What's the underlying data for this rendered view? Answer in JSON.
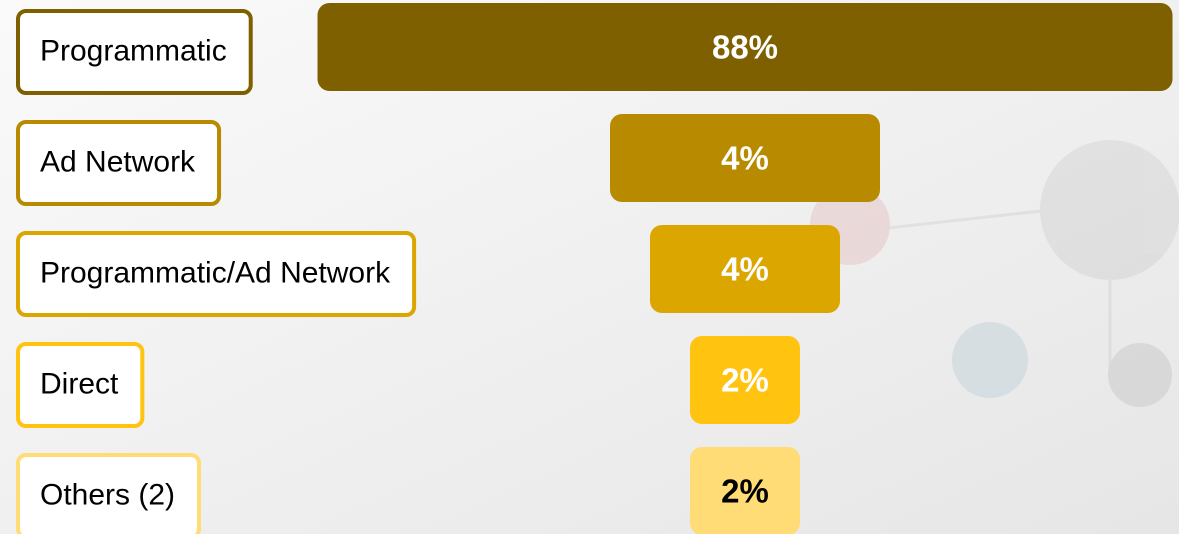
{
  "chart_data": {
    "type": "funnel",
    "categories": [
      "Programmatic",
      "Ad Network",
      "Programmatic/Ad Network",
      "Direct",
      "Others (2)"
    ],
    "values": [
      88,
      4,
      4,
      2,
      2
    ],
    "value_labels": [
      "88%",
      "4%",
      "4%",
      "2%",
      "2%"
    ],
    "colors": [
      "#7f6000",
      "#b88a00",
      "#dca600",
      "#ffc310",
      "#ffdc75"
    ],
    "label_text_colors": [
      "#ffffff",
      "#ffffff",
      "#ffffff",
      "#ffffff",
      "#000000"
    ]
  }
}
